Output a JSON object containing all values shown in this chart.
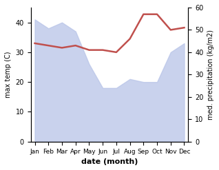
{
  "months": [
    "Jan",
    "Feb",
    "Mar",
    "Apr",
    "May",
    "Jun",
    "Jul",
    "Aug",
    "Sep",
    "Oct",
    "Nov",
    "Dec"
  ],
  "month_indices": [
    0,
    1,
    2,
    3,
    4,
    5,
    6,
    7,
    8,
    9,
    10,
    11
  ],
  "max_temp": [
    41,
    38,
    40,
    37,
    26,
    18,
    18,
    21,
    20,
    20,
    30,
    33
  ],
  "precipitation": [
    44,
    43,
    42,
    43,
    41,
    41,
    40,
    46,
    57,
    57,
    50,
    51
  ],
  "temp_color": "#b8c4e8",
  "temp_fill_color": "#b8c4e8",
  "precip_color": "#c0504d",
  "temp_ylim": [
    0,
    45
  ],
  "precip_ylim": [
    0,
    60
  ],
  "temp_yticks": [
    0,
    10,
    20,
    30,
    40
  ],
  "precip_yticks": [
    0,
    10,
    20,
    30,
    40,
    50,
    60
  ],
  "xlabel": "date (month)",
  "ylabel_left": "max temp (C)",
  "ylabel_right": "med. precipitation (kg/m2)",
  "background_color": "#ffffff"
}
